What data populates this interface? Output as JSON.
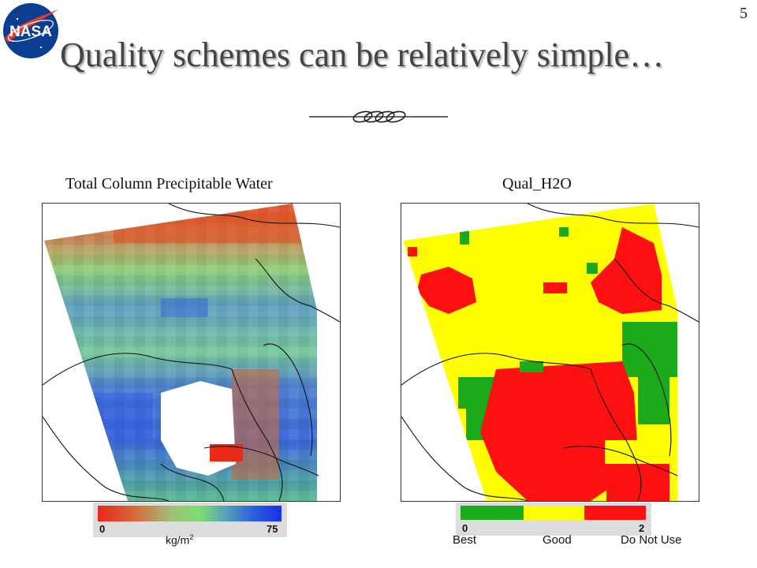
{
  "slide": {
    "page_number": "5",
    "title": "Quality schemes can be relatively simple…",
    "logo_text": "NASA"
  },
  "left_panel": {
    "title": "Total Column Precipitable Water",
    "colorbar": {
      "min_label": "0",
      "max_label": "75",
      "unit": "kg/m",
      "unit_superscript": "2",
      "colors": [
        "#e8261c",
        "#d66a3c",
        "#9fbf7a",
        "#7fe070",
        "#55a0b8",
        "#2a5fd8",
        "#1a2ef0"
      ]
    }
  },
  "right_panel": {
    "title": "Qual_H2O",
    "colorbar": {
      "min_label": "0",
      "max_label": "2",
      "categories": [
        {
          "label": "Best",
          "color": "#1aaa1a"
        },
        {
          "label": "Good",
          "color": "#ffff00"
        },
        {
          "label": "Do Not Use",
          "color": "#ff1010"
        }
      ]
    }
  }
}
